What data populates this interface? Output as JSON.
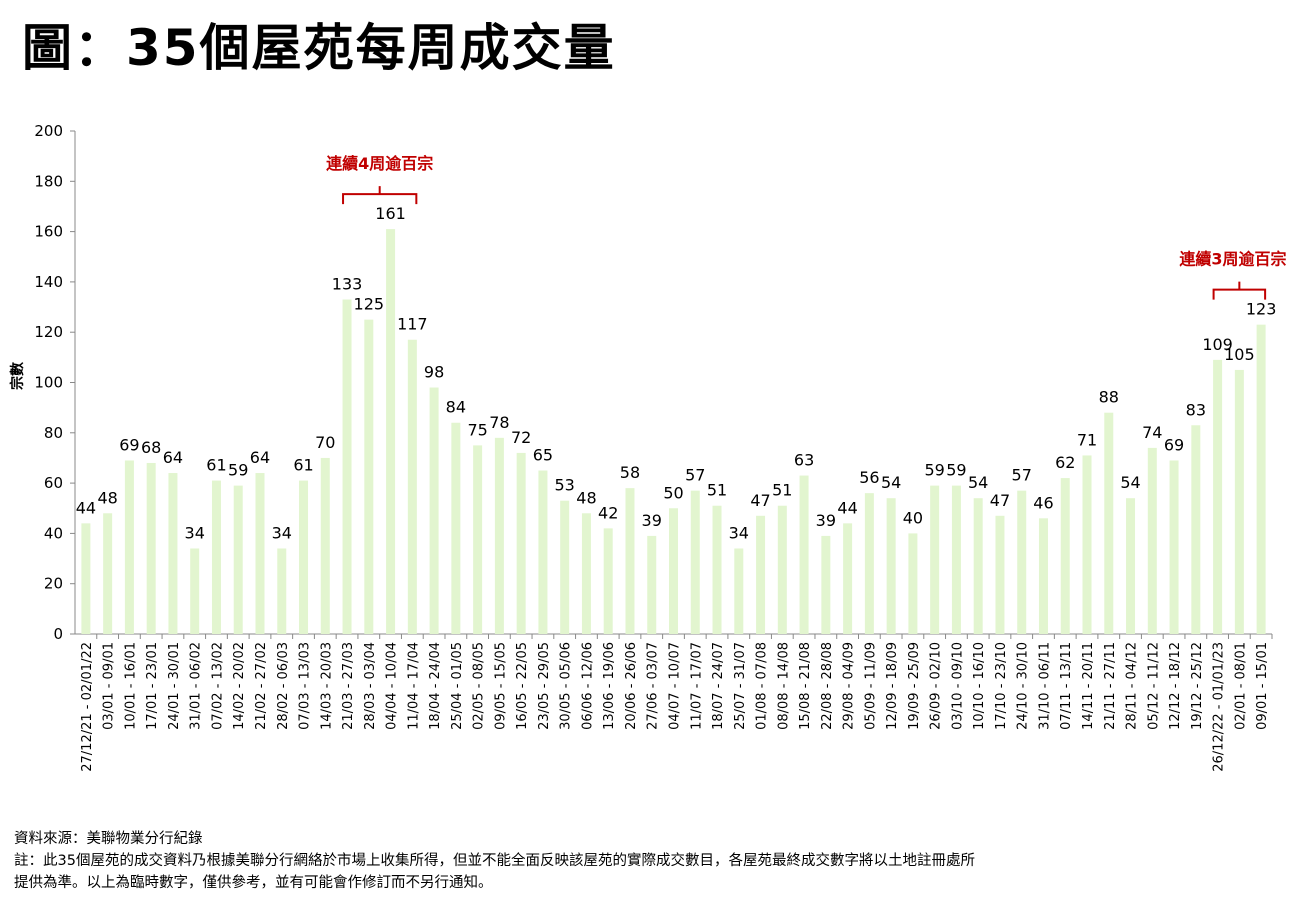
{
  "chart_data": {
    "type": "bar",
    "title": "圖：35個屋苑每周成交量",
    "ylabel": "宗數",
    "xlabel": "",
    "ylim": [
      0,
      200
    ],
    "yticks": [
      0,
      20,
      40,
      60,
      80,
      100,
      120,
      140,
      160,
      180,
      200
    ],
    "bar_color": "#e2f5cf",
    "annotation_color": "#c00000",
    "categories": [
      "27/12/21 - 02/01/22",
      "03/01 - 09/01",
      "10/01 - 16/01",
      "17/01 - 23/01",
      "24/01 - 30/01",
      "31/01 - 06/02",
      "07/02 - 13/02",
      "14/02 - 20/02",
      "21/02 - 27/02",
      "28/02 - 06/03",
      "07/03 - 13/03",
      "14/03 - 20/03",
      "21/03 - 27/03",
      "28/03 - 03/04",
      "04/04 - 10/04",
      "11/04 - 17/04",
      "18/04 - 24/04",
      "25/04 - 01/05",
      "02/05 - 08/05",
      "09/05 - 15/05",
      "16/05 - 22/05",
      "23/05 - 29/05",
      "30/05 - 05/06",
      "06/06 - 12/06",
      "13/06 - 19/06",
      "20/06 - 26/06",
      "27/06 - 03/07",
      "04/07 - 10/07",
      "11/07 - 17/07",
      "18/07 - 24/07",
      "25/07 - 31/07",
      "01/08 - 07/08",
      "08/08 - 14/08",
      "15/08 - 21/08",
      "22/08 - 28/08",
      "29/08 - 04/09",
      "05/09 - 11/09",
      "12/09 - 18/09",
      "19/09 - 25/09",
      "26/09 - 02/10",
      "03/10 - 09/10",
      "10/10 - 16/10",
      "17/10 - 23/10",
      "24/10 - 30/10",
      "31/10 - 06/11",
      "07/11 - 13/11",
      "14/11 - 20/11",
      "21/11 - 27/11",
      "28/11 - 04/12",
      "05/12 - 11/12",
      "12/12 - 18/12",
      "19/12 - 25/12",
      "26/12/22 - 01/01/23",
      "02/01 - 08/01",
      "09/01 - 15/01"
    ],
    "values": [
      44,
      48,
      69,
      68,
      64,
      34,
      61,
      59,
      64,
      34,
      61,
      70,
      133,
      125,
      161,
      117,
      98,
      84,
      75,
      78,
      72,
      65,
      53,
      48,
      42,
      58,
      39,
      50,
      57,
      51,
      34,
      47,
      51,
      63,
      39,
      44,
      56,
      54,
      40,
      59,
      59,
      54,
      47,
      57,
      46,
      62,
      71,
      88,
      54,
      74,
      69,
      83,
      109,
      105,
      123
    ],
    "annotations": [
      {
        "text": "連續4周逾百宗",
        "from_index": 12,
        "to_index": 15
      },
      {
        "text": "連續3周逾百宗",
        "from_index": 52,
        "to_index": 54
      }
    ]
  },
  "notes": {
    "source": "資料來源：美聯物業分行紀錄",
    "note1": "註：此35個屋苑的成交資料乃根據美聯分行網絡於市場上收集所得，但並不能全面反映該屋苑的實際成交數目，各屋苑最終成交數字將以土地註冊處所",
    "note2": "提供為準。以上為臨時數字，僅供參考，並有可能會作修訂而不另行通知。"
  }
}
